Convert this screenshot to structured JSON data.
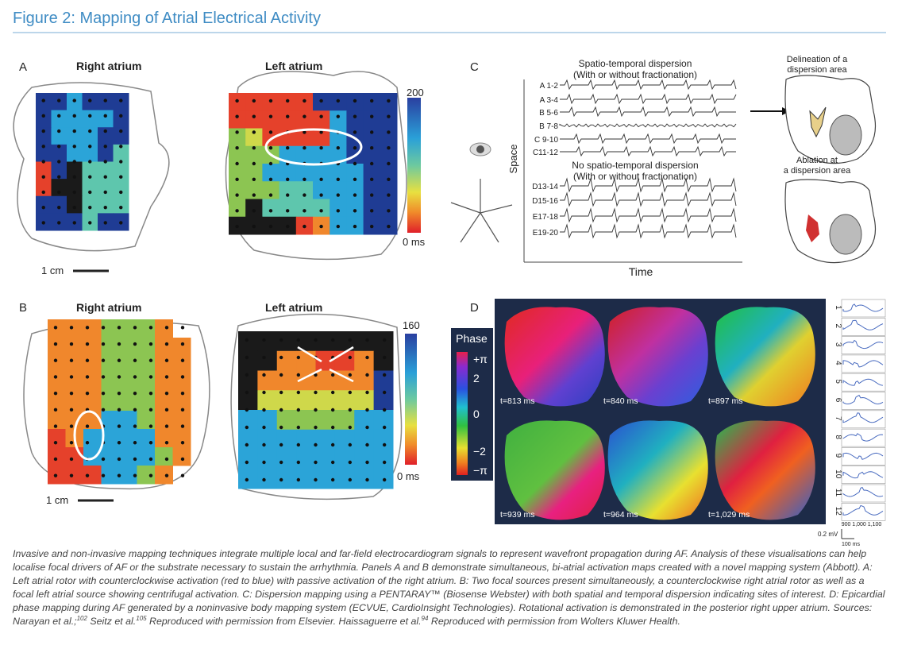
{
  "header": {
    "title": "Figure 2: Mapping of Atrial Electrical Activity"
  },
  "panel_a": {
    "label": "A",
    "right_title": "Right atrium",
    "left_title": "Left atrium",
    "scale_top": "200",
    "scale_bottom": "0 ms",
    "scale_bar": "1 cm"
  },
  "panel_b": {
    "label": "B",
    "right_title": "Right atrium",
    "left_title": "Left atrium",
    "scale_top": "160",
    "scale_bottom": "0 ms",
    "scale_bar": "1 cm"
  },
  "panel_c": {
    "label": "C",
    "top_title": "Spatio-temporal dispersion",
    "top_subtitle": "(With or without fractionation)",
    "bottom_title": "No spatio-temporal dispersion",
    "bottom_subtitle": "(With or without fractionation)",
    "channels": [
      "A 1-2",
      "A 3-4",
      "B 5-6",
      "B 7-8",
      "C 9-10",
      "C11-12",
      "D13-14",
      "D15-16",
      "E17-18",
      "E19-20"
    ],
    "y_axis": "Space",
    "x_axis": "Time",
    "delineation": [
      "Delineation of a",
      "dispersion area"
    ],
    "ablation": [
      "Ablation at",
      "a dispersion area"
    ]
  },
  "panel_d": {
    "label": "D",
    "legend_title": "Phase",
    "legend_ticks": [
      "+π",
      "2",
      "0",
      "−2",
      "−π"
    ],
    "times": [
      "t=813 ms",
      "t=840 ms",
      "t=897 ms",
      "t=939 ms",
      "t=964 ms",
      "t=1,029 ms"
    ],
    "trace_numbers": [
      "1",
      "2",
      "3",
      "4",
      "5",
      "6",
      "7",
      "8",
      "9",
      "10",
      "11",
      "12"
    ],
    "trace_axis": "900 1,000 1,100",
    "voltage_scale": "0.2 mV",
    "time_scale": "100 ms"
  },
  "caption": {
    "parts": [
      "Invasive and non-invasive mapping techniques integrate multiple local and far-field electrocardiogram signals to represent wavefront propagation during AF. Analysis of these visualisations can help localise focal drivers of AF or the substrate necessary to sustain the arrhythmia. Panels A and B demonstrate simultaneous, bi-atrial activation maps created with a novel mapping system (Abbott). A: Left atrial rotor with counterclockwise activation (red to blue) with passive activation of the right atrium. B: Two focal sources present simultaneously, a counterclockwise right atrial rotor as well as a focal left atrial source showing centrifugal activation. C: Dispersion mapping using a PENTARAY™ (Biosense Webster) with both spatial and temporal dispersion indicating sites of interest. D: Epicardial phase mapping during AF generated by a noninvasive body mapping system (ECVUE, CardioInsight Technologies). Rotational activation is demonstrated in the posterior right upper atrium. Sources: Narayan et al.;",
      "102",
      " Seitz et al.",
      "105",
      " Reproduced with permission from Elsevier. Haissaguerre et al.",
      "94",
      " Reproduced with permission from Wolters Kluwer Health."
    ]
  }
}
